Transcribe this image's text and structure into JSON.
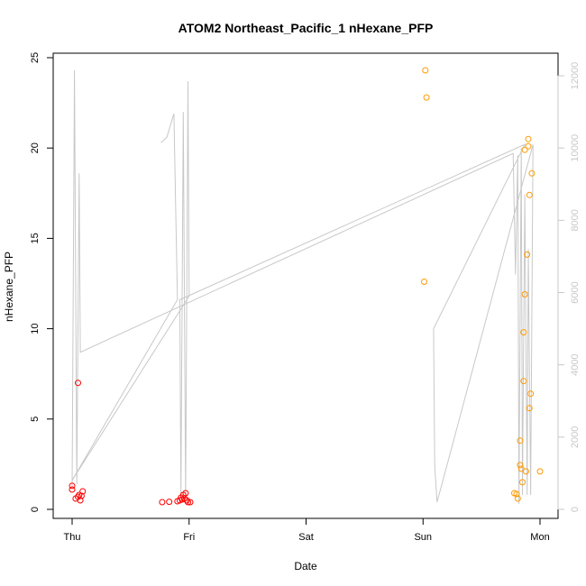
{
  "chart_data": {
    "type": "scatter",
    "title": "ATOM2 Northeast_Pacific_1 nHexane_PFP",
    "xlabel": "Date",
    "ylabel": "nHexane_PFP",
    "x_ticks": [
      "Thu",
      "Fri",
      "Sat",
      "Sun",
      "Mon"
    ],
    "xlim": [
      -0.2,
      4.15
    ],
    "ylim": [
      0,
      25
    ],
    "y_ticks": [
      0,
      5,
      10,
      15,
      20,
      25
    ],
    "y2lim": [
      0,
      12500
    ],
    "y2_ticks": [
      0,
      2000,
      4000,
      6000,
      8000,
      10000,
      12000
    ],
    "grid": false,
    "colors": {
      "red": "#ff0000",
      "orange": "#ff9900",
      "line": "#c8c8c8"
    },
    "series": [
      {
        "color": "red",
        "points": [
          [
            0.0,
            1.1
          ],
          [
            0.0,
            1.3
          ],
          [
            0.03,
            0.6
          ],
          [
            0.05,
            0.7
          ],
          [
            0.06,
            0.8
          ],
          [
            0.05,
            7.0
          ],
          [
            0.07,
            0.5
          ],
          [
            0.08,
            0.75
          ],
          [
            0.09,
            1.0
          ],
          [
            0.77,
            0.4
          ],
          [
            0.83,
            0.42
          ],
          [
            0.9,
            0.45
          ],
          [
            0.92,
            0.5
          ],
          [
            0.93,
            0.65
          ],
          [
            0.94,
            0.55
          ],
          [
            0.95,
            0.8
          ],
          [
            0.96,
            0.6
          ],
          [
            0.97,
            0.9
          ],
          [
            0.98,
            0.5
          ],
          [
            0.99,
            0.4
          ],
          [
            1.01,
            0.4
          ]
        ]
      },
      {
        "color": "orange",
        "points": [
          [
            3.02,
            24.3
          ],
          [
            3.03,
            22.8
          ],
          [
            3.01,
            12.6
          ],
          [
            3.78,
            0.9
          ],
          [
            3.8,
            0.85
          ],
          [
            3.81,
            0.6
          ],
          [
            3.83,
            3.8
          ],
          [
            3.83,
            2.45
          ],
          [
            3.84,
            2.25
          ],
          [
            3.85,
            1.5
          ],
          [
            3.86,
            7.1
          ],
          [
            3.86,
            9.8
          ],
          [
            3.87,
            11.9
          ],
          [
            3.87,
            19.9
          ],
          [
            3.88,
            2.1
          ],
          [
            3.89,
            14.1
          ],
          [
            3.9,
            20.5
          ],
          [
            3.9,
            20.1
          ],
          [
            3.91,
            17.4
          ],
          [
            3.91,
            5.6
          ],
          [
            3.92,
            6.4
          ],
          [
            3.93,
            18.6
          ],
          [
            4.0,
            2.1
          ]
        ]
      }
    ],
    "line_series": {
      "axis": "right",
      "color": "line",
      "points": [
        [
          0.0,
          600
        ],
        [
          0.02,
          12150
        ],
        [
          0.04,
          700
        ],
        [
          0.06,
          9300
        ],
        [
          0.07,
          4350
        ],
        [
          3.77,
          9850
        ],
        [
          3.79,
          6500
        ],
        [
          3.81,
          9800
        ],
        [
          3.82,
          150
        ],
        [
          3.84,
          10000
        ],
        [
          3.85,
          400
        ],
        [
          3.87,
          8700
        ],
        [
          3.89,
          400
        ],
        [
          3.9,
          7200
        ],
        [
          3.92,
          400
        ],
        [
          3.94,
          10100
        ],
        [
          3.12,
          200
        ],
        [
          3.1,
          1200
        ],
        [
          3.09,
          5000
        ],
        [
          3.87,
          10100
        ],
        [
          0.92,
          5800
        ],
        [
          0.93,
          400
        ],
        [
          0.95,
          11000
        ],
        [
          0.97,
          300
        ],
        [
          0.99,
          11850
        ],
        [
          1.0,
          5900
        ],
        [
          0.0,
          800
        ],
        [
          0.9,
          5800
        ],
        [
          0.87,
          10950
        ],
        [
          0.81,
          10300
        ],
        [
          0.76,
          10150
        ]
      ]
    }
  }
}
